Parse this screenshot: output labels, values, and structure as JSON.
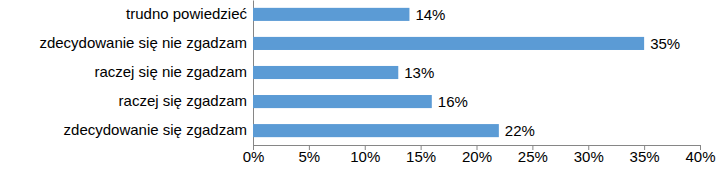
{
  "chart_data": {
    "type": "bar",
    "orientation": "horizontal",
    "categories": [
      "trudno powiedzieć",
      "zdecydowanie się nie zgadzam",
      "raczej się nie zgadzam",
      "raczej się zgadzam",
      "zdecydowanie się zgadzam"
    ],
    "values": [
      14,
      35,
      13,
      16,
      22
    ],
    "value_labels": [
      "14%",
      "35%",
      "13%",
      "16%",
      "22%"
    ],
    "color": "#5b9bd5",
    "data_labels": true,
    "grid": false,
    "xlim": [
      0,
      40
    ],
    "xticks": [
      {
        "value": 0,
        "label": "0%"
      },
      {
        "value": 5,
        "label": "5%"
      },
      {
        "value": 10,
        "label": "10%"
      },
      {
        "value": 15,
        "label": "15%"
      },
      {
        "value": 20,
        "label": "20%"
      },
      {
        "value": 25,
        "label": "25%"
      },
      {
        "value": 30,
        "label": "30%"
      },
      {
        "value": 35,
        "label": "35%"
      },
      {
        "value": 40,
        "label": "40%"
      }
    ]
  }
}
